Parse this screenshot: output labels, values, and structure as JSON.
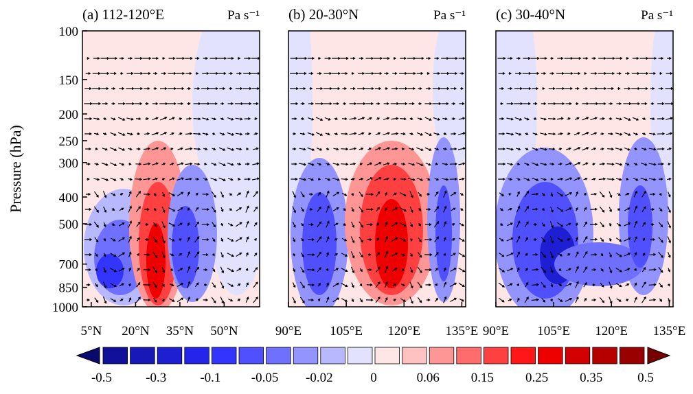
{
  "chart_data": [
    {
      "type": "contour",
      "title": "(a) 112-120°E",
      "units": "Pa s⁻¹",
      "ylabel": "Pressure (hPa)",
      "xlim": [
        2,
        62
      ],
      "xticks": [
        {
          "value": 5,
          "label": "5°N"
        },
        {
          "value": 20,
          "label": "20°N"
        },
        {
          "value": 35,
          "label": "35°N"
        },
        {
          "value": 50,
          "label": "50°N"
        }
      ],
      "ylim": [
        1000,
        100
      ],
      "yscale": "log",
      "yticks": [
        100,
        150,
        200,
        250,
        300,
        400,
        500,
        700,
        850,
        1000
      ]
    },
    {
      "type": "contour",
      "title": "(b) 20-30°N",
      "units": "Pa s⁻¹",
      "xlim": [
        90,
        136
      ],
      "xticks": [
        {
          "value": 90,
          "label": "90°E"
        },
        {
          "value": 105,
          "label": "105°E"
        },
        {
          "value": 120,
          "label": "120°E"
        },
        {
          "value": 135,
          "label": "135°E"
        }
      ],
      "ylim": [
        1000,
        100
      ],
      "yscale": "log"
    },
    {
      "type": "contour",
      "title": "(c) 30-40°N",
      "units": "Pa s⁻¹",
      "xlim": [
        90,
        136
      ],
      "xticks": [
        {
          "value": 90,
          "label": "90°E"
        },
        {
          "value": 105,
          "label": "105°E"
        },
        {
          "value": 120,
          "label": "120°E"
        },
        {
          "value": 135,
          "label": "135°E"
        }
      ],
      "ylim": [
        1000,
        100
      ],
      "yscale": "log"
    }
  ],
  "colorbar": {
    "colors": [
      "#0a0a6e",
      "#10109a",
      "#1818b8",
      "#1e1ed2",
      "#2424ea",
      "#3434ff",
      "#5050ff",
      "#7070ff",
      "#9494ff",
      "#b8b8ff",
      "#e2e2ff",
      "#ffe6e6",
      "#ffc2c2",
      "#ff9696",
      "#ff6c6c",
      "#ff4040",
      "#ff1616",
      "#ee0000",
      "#d20000",
      "#b60000",
      "#9a0000",
      "#760000"
    ],
    "labels": [
      -0.5,
      -0.3,
      -0.1,
      -0.05,
      -0.02,
      0,
      0.06,
      0.15,
      0.25,
      0.35,
      0.5
    ]
  }
}
